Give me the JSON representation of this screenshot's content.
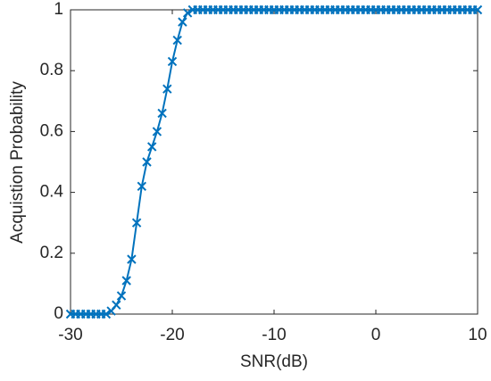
{
  "chart_data": {
    "type": "line",
    "xlabel": "SNR(dB)",
    "ylabel": "Acquistion Probability",
    "x": [
      -30,
      -29.5,
      -29,
      -28.5,
      -28,
      -27.5,
      -27,
      -26.5,
      -26,
      -25.5,
      -25,
      -24.5,
      -24,
      -23.5,
      -23,
      -22.5,
      -22,
      -21.5,
      -21,
      -20.5,
      -20,
      -19.5,
      -19,
      -18.5,
      -18,
      -17.5,
      -17,
      -16.5,
      -16,
      -15.5,
      -15,
      -14.5,
      -14,
      -13.5,
      -13,
      -12.5,
      -12,
      -11.5,
      -11,
      -10.5,
      -10,
      -9.5,
      -9,
      -8.5,
      -8,
      -7.5,
      -7,
      -6.5,
      -6,
      -5.5,
      -5,
      -4.5,
      -4,
      -3.5,
      -3,
      -2.5,
      -2,
      -1.5,
      -1,
      -0.5,
      0,
      0.5,
      1,
      1.5,
      2,
      2.5,
      3,
      3.5,
      4,
      4.5,
      5,
      5.5,
      6,
      6.5,
      7,
      7.5,
      8,
      8.5,
      9,
      9.5,
      10
    ],
    "series": [
      {
        "color": "#0072bd",
        "marker": "x",
        "values": [
          0,
          0,
          0,
          0,
          0,
          0,
          0,
          0,
          0.01,
          0.03,
          0.06,
          0.11,
          0.18,
          0.3,
          0.42,
          0.5,
          0.55,
          0.6,
          0.66,
          0.74,
          0.83,
          0.9,
          0.96,
          0.99,
          1,
          1,
          1,
          1,
          1,
          1,
          1,
          1,
          1,
          1,
          1,
          1,
          1,
          1,
          1,
          1,
          1,
          1,
          1,
          1,
          1,
          1,
          1,
          1,
          1,
          1,
          1,
          1,
          1,
          1,
          1,
          1,
          1,
          1,
          1,
          1,
          1,
          1,
          1,
          1,
          1,
          1,
          1,
          1,
          1,
          1,
          1,
          1,
          1,
          1,
          1,
          1,
          1,
          1,
          1,
          1,
          1
        ]
      }
    ],
    "xlim": [
      -30,
      10
    ],
    "xticks": [
      -30,
      -20,
      -10,
      0,
      10
    ],
    "ylim": [
      0,
      1
    ],
    "yticks": [
      0,
      0.2,
      0.4,
      0.6,
      0.8,
      1
    ],
    "grid": false
  }
}
